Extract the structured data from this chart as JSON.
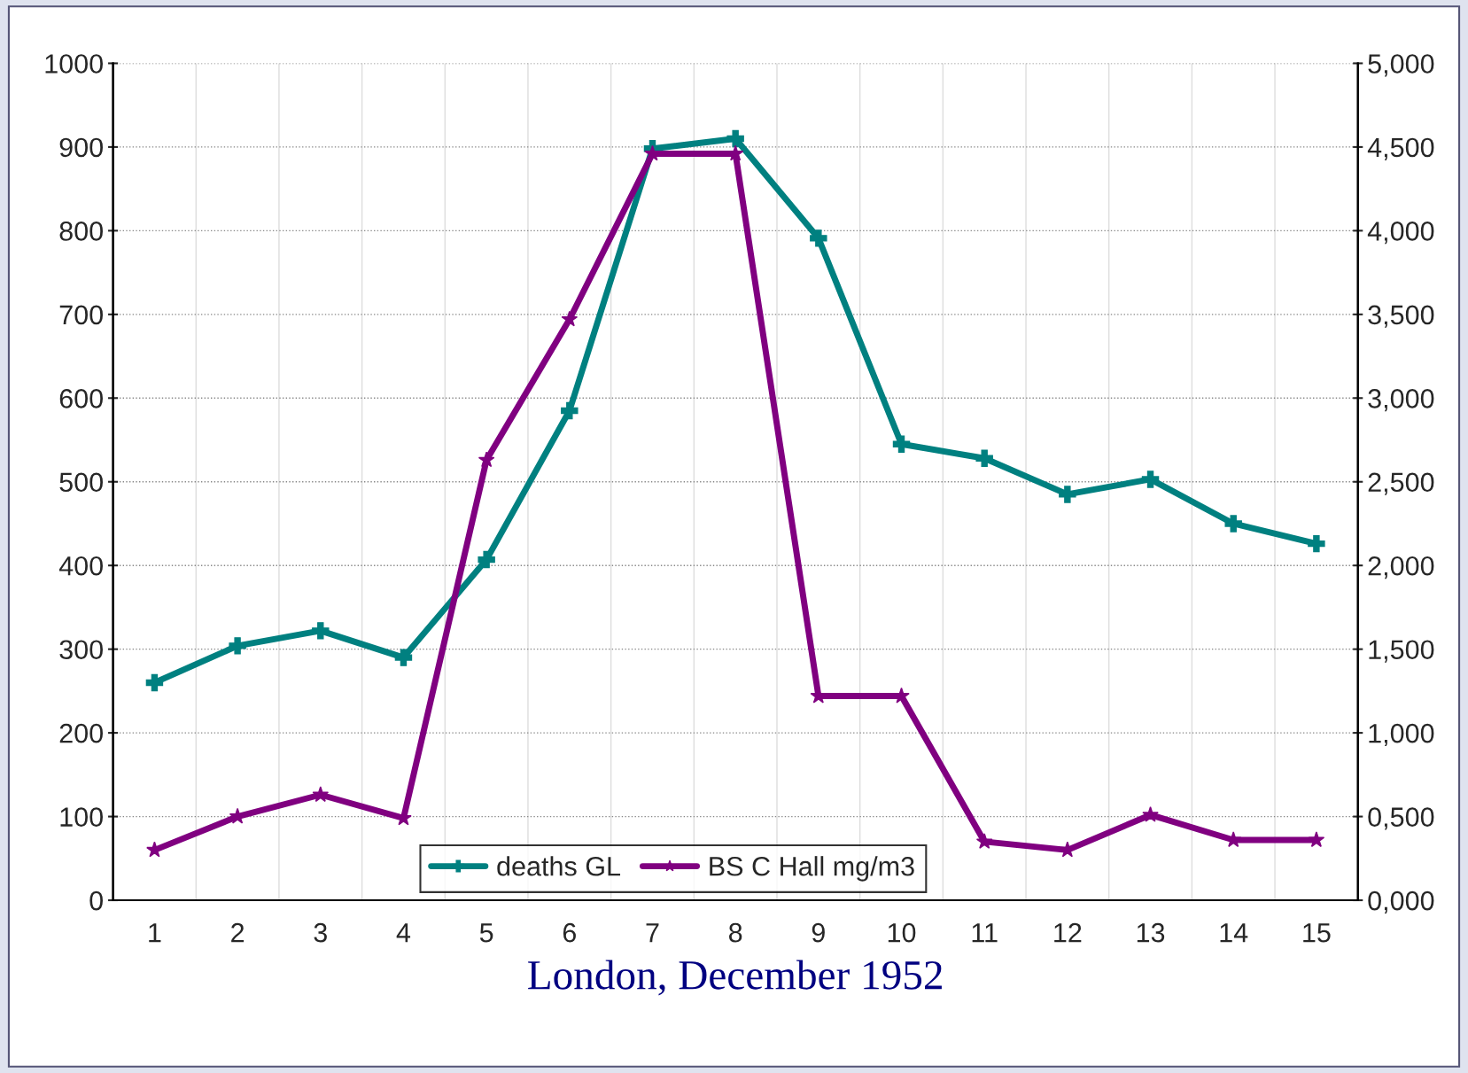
{
  "chart_data": {
    "type": "line",
    "xlabel": "London, December 1952",
    "categories": [
      "1",
      "2",
      "3",
      "4",
      "5",
      "6",
      "7",
      "8",
      "9",
      "10",
      "11",
      "12",
      "13",
      "14",
      "15"
    ],
    "series": [
      {
        "name": "deaths GL",
        "color": "#008080",
        "marker": "cross",
        "values": [
          260,
          304,
          322,
          290,
          407,
          585,
          898,
          910,
          791,
          545,
          528,
          485,
          503,
          450,
          426
        ]
      },
      {
        "name": "BS C Hall mg/m3",
        "color": "#800080",
        "marker": "star",
        "axis": "y2",
        "values": [
          0.3,
          0.5,
          0.63,
          0.49,
          2.63,
          3.47,
          4.46,
          4.46,
          1.22,
          1.22,
          0.35,
          0.3,
          0.51,
          0.36,
          0.36
        ]
      }
    ],
    "ylim": [
      0,
      1000
    ],
    "yticks": [
      0,
      100,
      200,
      300,
      400,
      500,
      600,
      700,
      800,
      900,
      1000
    ],
    "y2lim": [
      0,
      5
    ],
    "y2ticks": [
      {
        "value": 0,
        "label": "0,000"
      },
      {
        "value": 0.5,
        "label": "0,500"
      },
      {
        "value": 1,
        "label": "1,000"
      },
      {
        "value": 1.5,
        "label": "1,500"
      },
      {
        "value": 2,
        "label": "2,000"
      },
      {
        "value": 2.5,
        "label": "2,500"
      },
      {
        "value": 3,
        "label": "3,000"
      },
      {
        "value": 3.5,
        "label": "3,500"
      },
      {
        "value": 4,
        "label": "4,000"
      },
      {
        "value": 4.5,
        "label": "4,500"
      },
      {
        "value": 5,
        "label": "5,000"
      }
    ],
    "grid": true,
    "legend": "bottom",
    "line_style": "solid"
  }
}
